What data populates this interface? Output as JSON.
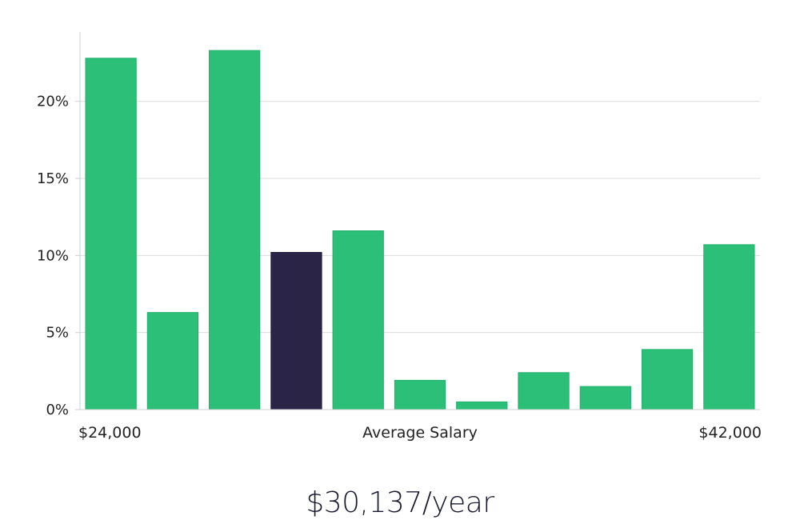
{
  "chart_data": {
    "type": "bar",
    "title": "",
    "xlabel": "Average Salary",
    "ylabel": "",
    "x_start_label": "$24,000",
    "x_end_label": "$42,000",
    "ylim": [
      0,
      24.5
    ],
    "yticks": [
      0,
      5,
      10,
      15,
      20
    ],
    "ytick_labels": [
      "0%",
      "5%",
      "10%",
      "15%",
      "20%"
    ],
    "values": [
      22.8,
      6.3,
      23.3,
      10.2,
      11.6,
      1.9,
      0.5,
      2.4,
      1.5,
      3.9,
      10.7
    ],
    "highlight_index": 3,
    "grid": true,
    "colors": {
      "bar": "#2bbf77",
      "highlight": "#2a2547",
      "grid": "#dcdcdc",
      "axis": "#cfcfcf"
    }
  },
  "summary": {
    "salary_label": "$30,137/year"
  }
}
